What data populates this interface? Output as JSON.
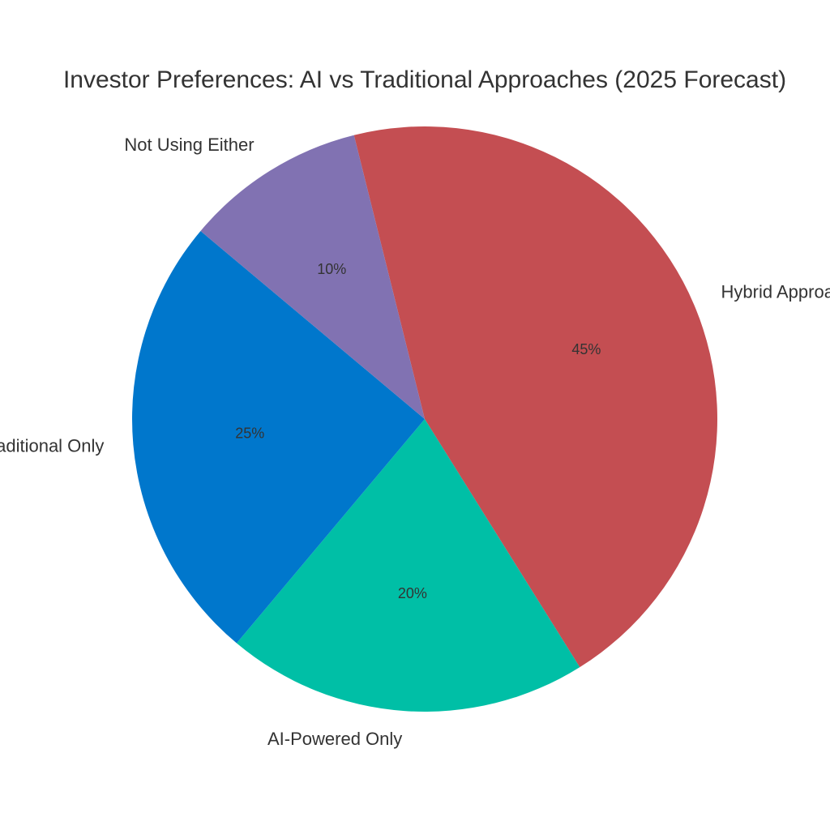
{
  "chart_data": {
    "type": "pie",
    "title": "Investor Preferences: AI vs Traditional Approaches (2025 Forecast)",
    "categories": [
      "Hybrid Approach",
      "AI-Powered Only",
      "Traditional Only",
      "Not Using Either"
    ],
    "values": [
      45,
      20,
      25,
      10
    ],
    "value_labels": [
      "45%",
      "20%",
      "25%",
      "10%"
    ],
    "colors": [
      "#c44e52",
      "#00bfa6",
      "#0077cc",
      "#8172b2"
    ]
  }
}
